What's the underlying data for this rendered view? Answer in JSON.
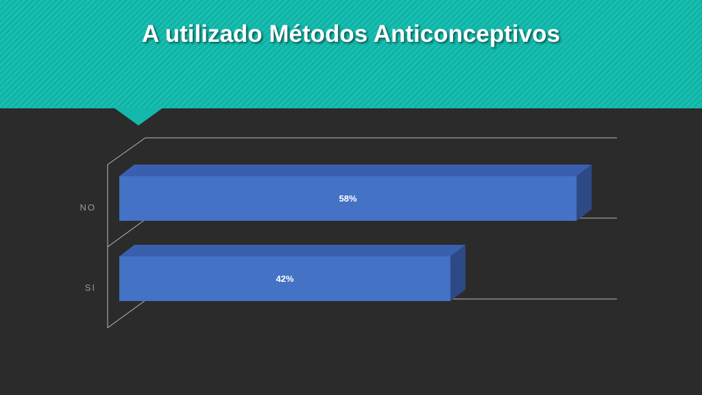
{
  "chart_data": {
    "type": "bar",
    "title": "A utilizado Métodos Anticonceptivos",
    "categories": [
      "NO",
      "SI"
    ],
    "values": [
      58,
      42
    ],
    "value_labels": [
      "58%",
      "42%"
    ],
    "color": "#4472c4"
  }
}
